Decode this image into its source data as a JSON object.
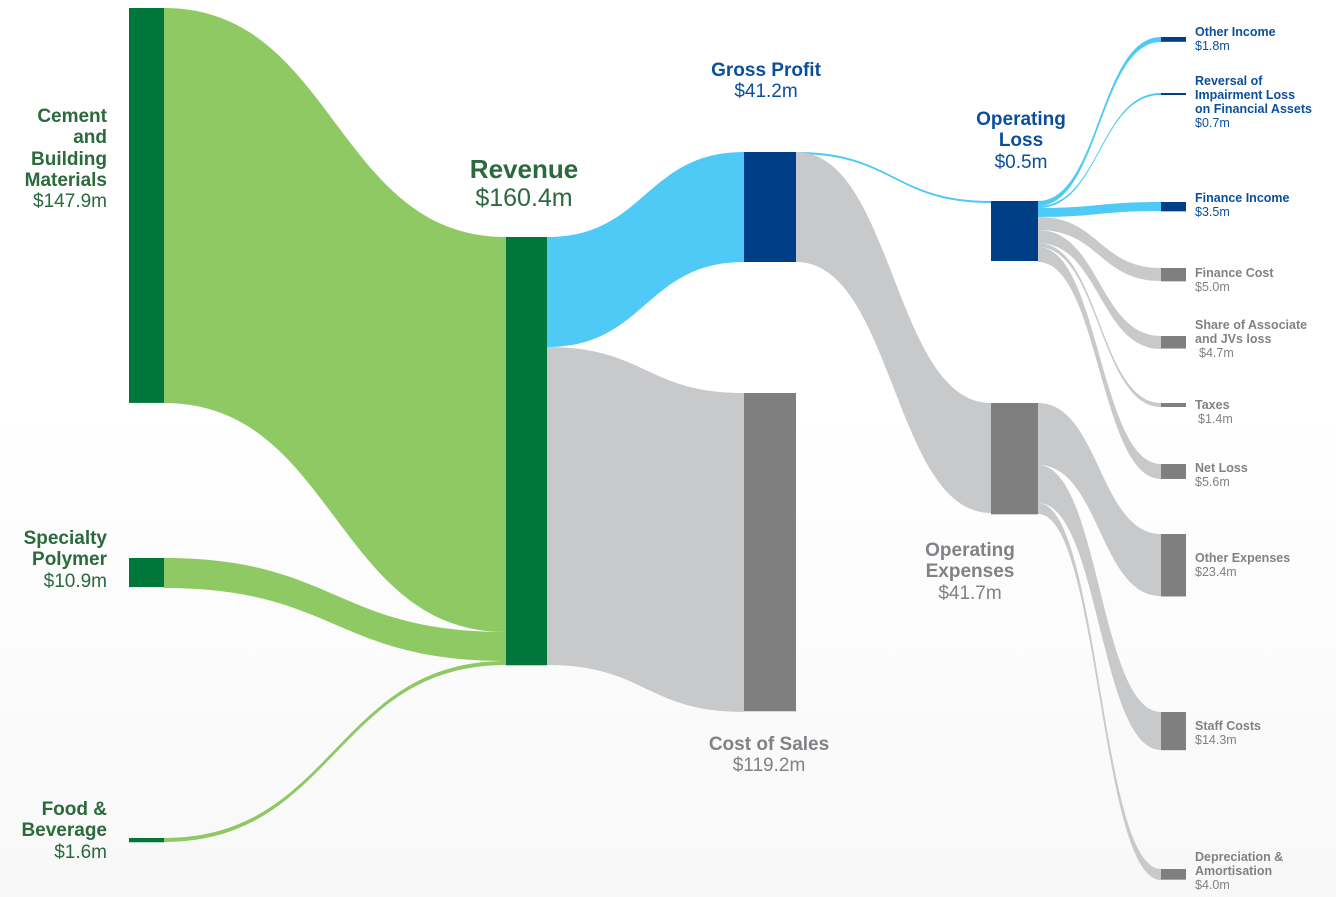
{
  "colors": {
    "dark_green": "#00773a",
    "light_green": "#8fc964",
    "dark_blue": "#003e87",
    "light_blue": "#4fc9f5",
    "dark_grey": "#7f7f80",
    "light_grey": "#c8c9cb"
  },
  "chart_data": {
    "type": "sankey",
    "unit": "$m",
    "nodes": [
      {
        "id": "cement",
        "name": "Cement and Building Materials",
        "value_label": "$147.9m",
        "value": 147.9
      },
      {
        "id": "polymer",
        "name": "Specialty Polymer",
        "value_label": "$10.9m",
        "value": 10.9
      },
      {
        "id": "food",
        "name": "Food & Beverage",
        "value_label": "$1.6m",
        "value": 1.6
      },
      {
        "id": "revenue",
        "name": "Revenue",
        "value_label": "$160.4m",
        "value": 160.4
      },
      {
        "id": "gross_profit",
        "name": "Gross Profit",
        "value_label": "$41.2m",
        "value": 41.2
      },
      {
        "id": "cost_of_sales",
        "name": "Cost of Sales",
        "value_label": "$119.2m",
        "value": 119.2
      },
      {
        "id": "operating_loss",
        "name": "Operating Loss",
        "value_label": "$0.5m",
        "value": 0.5
      },
      {
        "id": "operating_expenses",
        "name": "Operating Expenses",
        "value_label": "$41.7m",
        "value": 41.7
      },
      {
        "id": "other_income",
        "name": "Other Income",
        "value_label": "$1.8m",
        "value": 1.8
      },
      {
        "id": "reversal",
        "name": "Reversal of Impairment Loss on Financial Assets",
        "value_label": "$0.7m",
        "value": 0.7
      },
      {
        "id": "finance_income",
        "name": "Finance Income",
        "value_label": "$3.5m",
        "value": 3.5
      },
      {
        "id": "finance_cost",
        "name": "Finance Cost",
        "value_label": "$5.0m",
        "value": 5.0
      },
      {
        "id": "associate",
        "name": "Share of Associate and JVs loss",
        "value_label": "$4.7m",
        "value": 4.7
      },
      {
        "id": "taxes",
        "name": "Taxes",
        "value_label": "$1.4m",
        "value": 1.4
      },
      {
        "id": "net_loss",
        "name": "Net Loss",
        "value_label": "$5.6m",
        "value": 5.6
      },
      {
        "id": "other_expenses",
        "name": "Other Expenses",
        "value_label": "$23.4m",
        "value": 23.4
      },
      {
        "id": "staff_costs",
        "name": "Staff Costs",
        "value_label": "$14.3m",
        "value": 14.3
      },
      {
        "id": "depreciation",
        "name": "Depreciation & Amortisation",
        "value_label": "$4.0m",
        "value": 4.0
      }
    ],
    "links": [
      {
        "source": "cement",
        "target": "revenue",
        "value": 147.9
      },
      {
        "source": "polymer",
        "target": "revenue",
        "value": 10.9
      },
      {
        "source": "food",
        "target": "revenue",
        "value": 1.6
      },
      {
        "source": "revenue",
        "target": "gross_profit",
        "value": 41.2
      },
      {
        "source": "revenue",
        "target": "cost_of_sales",
        "value": 119.2
      },
      {
        "source": "gross_profit",
        "target": "operating_loss",
        "value": 0.5
      },
      {
        "source": "gross_profit",
        "target": "operating_expenses",
        "value": 41.7
      },
      {
        "source": "other_income",
        "target": "operating_loss",
        "value": 1.8
      },
      {
        "source": "reversal",
        "target": "operating_loss",
        "value": 0.7
      },
      {
        "source": "finance_income",
        "target": "operating_loss",
        "value": 3.5
      },
      {
        "source": "operating_loss",
        "target": "finance_cost",
        "value": 5.0
      },
      {
        "source": "operating_loss",
        "target": "associate",
        "value": 4.7
      },
      {
        "source": "operating_loss",
        "target": "taxes",
        "value": 1.4
      },
      {
        "source": "net_loss",
        "target": "operating_loss",
        "value": 5.6
      },
      {
        "source": "operating_expenses",
        "target": "other_expenses",
        "value": 23.4
      },
      {
        "source": "operating_expenses",
        "target": "staff_costs",
        "value": 14.3
      },
      {
        "source": "operating_expenses",
        "target": "depreciation",
        "value": 4.0
      }
    ]
  },
  "labels": {
    "cement": {
      "line1": "Cement",
      "line2": "and",
      "line3": "Building",
      "line4": "Materials",
      "value": "$147.9m"
    },
    "polymer": {
      "line1": "Specialty",
      "line2": "Polymer",
      "value": "$10.9m"
    },
    "food": {
      "line1": "Food &",
      "line2": "Beverage",
      "value": "$1.6m"
    },
    "revenue": {
      "line1": "Revenue",
      "value": "$160.4m"
    },
    "gross_profit": {
      "line1": "Gross Profit",
      "value": "$41.2m"
    },
    "cost_of_sales": {
      "line1": "Cost of Sales",
      "value": "$119.2m"
    },
    "operating_loss": {
      "line1": "Operating",
      "line2": "Loss",
      "value": "$0.5m"
    },
    "operating_expenses": {
      "line1": "Operating",
      "line2": "Expenses",
      "value": "$41.7m"
    },
    "other_income": {
      "line1": "Other Income",
      "value": "$1.8m"
    },
    "reversal": {
      "line1": "Reversal of",
      "line2": "Impairment Loss",
      "line3": "on Financial Assets",
      "value": "$0.7m"
    },
    "finance_income": {
      "line1": "Finance Income",
      "value": "$3.5m"
    },
    "finance_cost": {
      "line1": "Finance Cost",
      "value": "$5.0m"
    },
    "associate": {
      "line1": "Share of Associate",
      "line2": "and JVs loss",
      "value": "$4.7m"
    },
    "taxes": {
      "line1": "Taxes",
      "value": "$1.4m"
    },
    "net_loss": {
      "line1": "Net Loss",
      "value": "$5.6m"
    },
    "other_expenses": {
      "line1": "Other Expenses",
      "value": "$23.4m"
    },
    "staff_costs": {
      "line1": "Staff Costs",
      "value": "$14.3m"
    },
    "depreciation": {
      "line1": "Depreciation &",
      "line2": "Amortisation",
      "value": "$4.0m"
    }
  }
}
